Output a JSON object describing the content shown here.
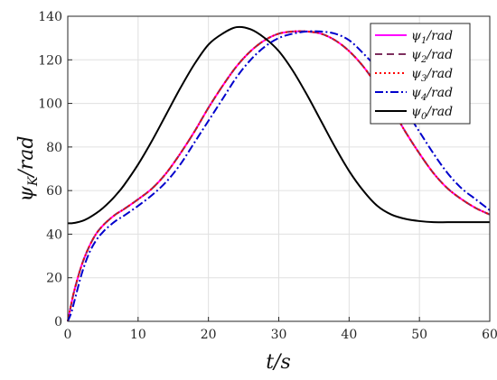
{
  "chart_data": {
    "type": "line",
    "xlabel": "t/s",
    "ylabel": "ψK/rad",
    "xlim": [
      0,
      60
    ],
    "ylim": [
      0,
      140
    ],
    "xticks": [
      0,
      10,
      20,
      30,
      40,
      50,
      60
    ],
    "yticks": [
      0,
      20,
      40,
      60,
      80,
      100,
      120,
      140
    ],
    "grid": true,
    "legend_position": "top-right",
    "x": [
      0,
      0.5,
      1,
      2,
      3,
      4,
      5,
      6,
      7,
      8,
      10,
      12,
      14,
      16,
      18,
      20,
      22,
      24,
      26,
      28,
      30,
      32,
      34,
      36,
      38,
      40,
      42,
      44,
      46,
      48,
      50,
      52,
      54,
      56,
      58,
      60
    ],
    "series": [
      {
        "name": "ψ1/rad",
        "label_main": "ψ",
        "label_sub": "1",
        "label_suffix": "/rad",
        "color": "#ff00ff",
        "dash": "solid",
        "values": [
          0,
          8,
          15,
          26,
          34,
          40,
          44,
          47,
          49.5,
          51.5,
          56,
          61,
          68,
          77,
          87,
          98,
          108,
          117,
          124,
          129,
          132,
          133,
          133,
          132,
          129,
          124,
          117,
          108,
          98,
          87,
          77,
          68,
          61,
          56,
          52,
          49
        ]
      },
      {
        "name": "ψ2/rad",
        "label_main": "ψ",
        "label_sub": "2",
        "label_suffix": "/rad",
        "color": "#7e2f5e",
        "dash": "8,5",
        "values": [
          0,
          8,
          15,
          26,
          34,
          40,
          44,
          47,
          49.5,
          51.5,
          56,
          61,
          68,
          77,
          87,
          98,
          108,
          117,
          124,
          129,
          132,
          133,
          133,
          132,
          129,
          124,
          117,
          108,
          98,
          87,
          77,
          68,
          61,
          56,
          52,
          49
        ]
      },
      {
        "name": "ψ3/rad",
        "label_main": "ψ",
        "label_sub": "3",
        "label_suffix": "/rad",
        "color": "#ff0000",
        "dash": "2,3",
        "values": [
          0,
          8,
          15,
          26,
          34,
          40,
          44,
          47,
          49.5,
          51.5,
          56,
          61,
          68,
          77,
          87,
          98,
          108,
          117,
          124,
          129,
          132,
          133,
          133,
          132,
          129,
          124,
          117,
          108,
          98,
          87,
          77,
          68,
          61,
          56,
          52,
          49
        ]
      },
      {
        "name": "ψ4/rad",
        "label_main": "ψ",
        "label_sub": "4",
        "label_suffix": "/rad",
        "color": "#0000cc",
        "dash": "9,3,2,3",
        "values": [
          0,
          4,
          10,
          22,
          31,
          37,
          41,
          44,
          46.5,
          48.5,
          53,
          58,
          64,
          72,
          82,
          92,
          102,
          112,
          120,
          126,
          130,
          132,
          133,
          133,
          132,
          129,
          123,
          116,
          107,
          97,
          87,
          77,
          68,
          61,
          56,
          51
        ]
      },
      {
        "name": "ψ0/rad",
        "label_main": "ψ",
        "label_sub": "0",
        "label_suffix": "/rad",
        "color": "#000000",
        "dash": "solid",
        "values": [
          45,
          45,
          45.2,
          46,
          47.5,
          49.5,
          52,
          55,
          58.5,
          62.5,
          72,
          83,
          95,
          107,
          118,
          127,
          132,
          135,
          134,
          130,
          124,
          115,
          104,
          92,
          80,
          69,
          60,
          53,
          49,
          47,
          46,
          45.5,
          45.5,
          45.5,
          45.5,
          45.5
        ]
      }
    ]
  }
}
